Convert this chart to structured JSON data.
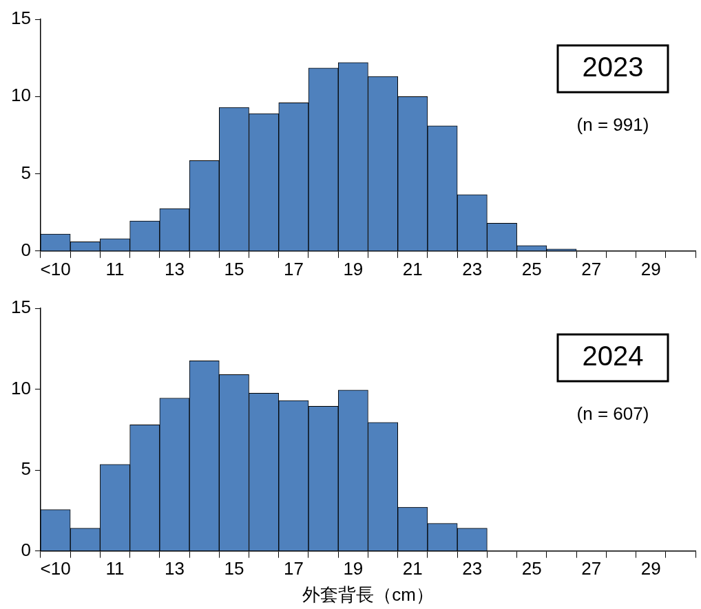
{
  "chart_data": [
    {
      "type": "bar",
      "categories": [
        "<10",
        null,
        "11",
        null,
        "13",
        null,
        "15",
        null,
        "17",
        null,
        "19",
        null,
        "21",
        null,
        "23",
        null,
        "25",
        null,
        "27",
        null,
        "29",
        null
      ],
      "values": [
        1.1,
        0.6,
        0.8,
        1.95,
        2.75,
        5.85,
        9.3,
        8.9,
        9.6,
        11.85,
        12.2,
        11.3,
        10.0,
        8.1,
        3.65,
        1.8,
        0.35,
        0.13,
        0,
        0,
        0,
        0
      ],
      "color": "#4f81bd",
      "ylim": [
        0,
        15
      ],
      "yticks": [
        0,
        5,
        10,
        15
      ],
      "grid": false,
      "legend": false,
      "annotations": [
        "2023",
        "(n = 991)"
      ]
    },
    {
      "type": "bar",
      "categories": [
        "<10",
        null,
        "11",
        null,
        "13",
        null,
        "15",
        null,
        "17",
        null,
        "19",
        null,
        "21",
        null,
        "23",
        null,
        "25",
        null,
        "27",
        null,
        "29",
        null
      ],
      "values": [
        2.55,
        1.4,
        5.35,
        7.8,
        9.45,
        11.75,
        10.9,
        9.75,
        9.3,
        8.95,
        9.95,
        7.95,
        2.7,
        1.7,
        1.4,
        0,
        0,
        0,
        0,
        0,
        0,
        0
      ],
      "color": "#4f81bd",
      "ylim": [
        0,
        15
      ],
      "yticks": [
        0,
        5,
        10,
        15
      ],
      "grid": false,
      "legend": false,
      "xlabel": "外套背長（cm）",
      "annotations": [
        "2024",
        "(n = 607)"
      ]
    }
  ]
}
